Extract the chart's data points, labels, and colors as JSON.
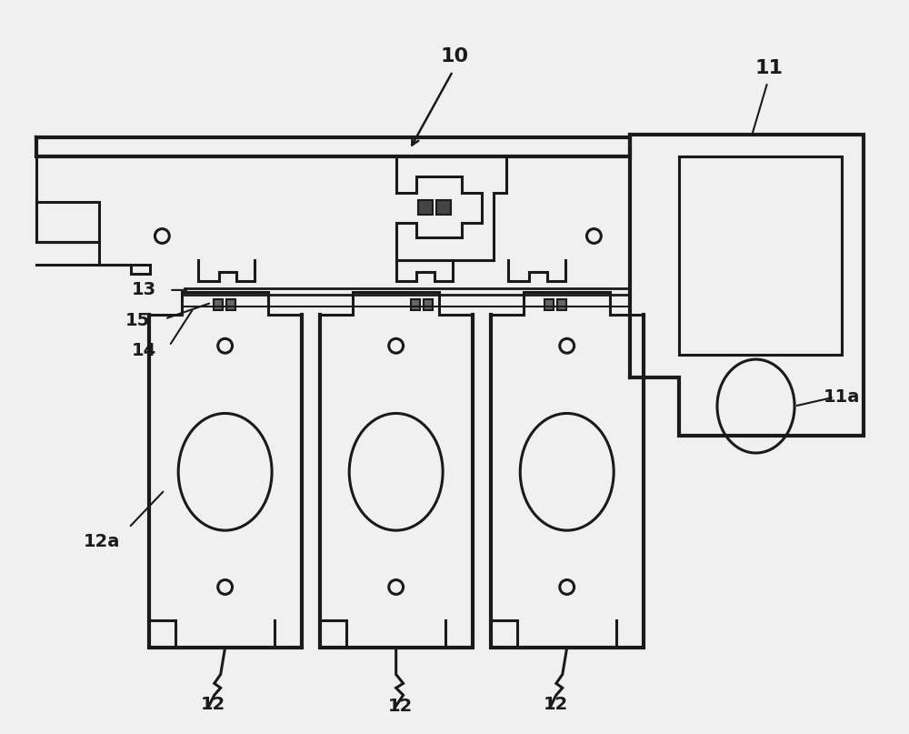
{
  "bg_color": "#f0f0f0",
  "line_color": "#1a1a1a",
  "figsize": [
    10.0,
    8.07
  ],
  "dpi": 100,
  "lw_thick": 3.0,
  "lw_med": 2.2,
  "lw_thin": 1.5
}
